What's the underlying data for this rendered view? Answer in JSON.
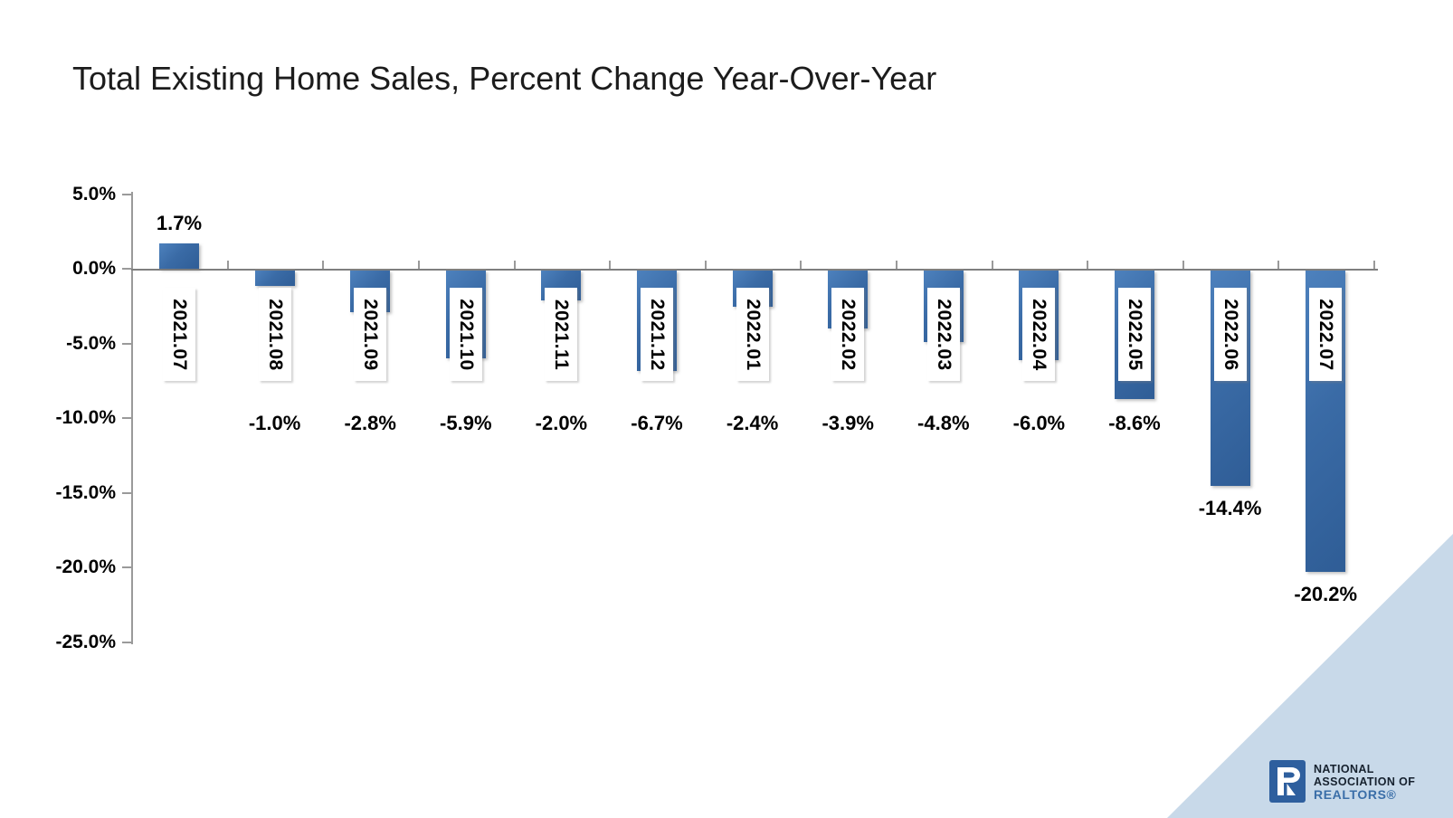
{
  "title": "Total Existing Home Sales, Percent Change Year-Over-Year",
  "chart_data": {
    "type": "bar",
    "categories": [
      "2021.07",
      "2021.08",
      "2021.09",
      "2021.10",
      "2021.11",
      "2021.12",
      "2022.01",
      "2022.02",
      "2022.03",
      "2022.04",
      "2022.05",
      "2022.06",
      "2022.07"
    ],
    "values": [
      1.7,
      -1.0,
      -2.8,
      -5.9,
      -2.0,
      -6.7,
      -2.4,
      -3.9,
      -4.8,
      -6.0,
      -8.6,
      -14.4,
      -20.2
    ],
    "value_labels": [
      "1.7%",
      "-1.0%",
      "-2.8%",
      "-5.9%",
      "-2.0%",
      "-6.7%",
      "-2.4%",
      "-3.9%",
      "-4.8%",
      "-6.0%",
      "-8.6%",
      "-14.4%",
      "-20.2%"
    ],
    "y_ticks": [
      {
        "value": 5,
        "label": "5.0%"
      },
      {
        "value": 0,
        "label": "0.0%"
      },
      {
        "value": -5,
        "label": "-5.0%"
      },
      {
        "value": -10,
        "label": "-10.0%"
      },
      {
        "value": -15,
        "label": "-15.0%"
      },
      {
        "value": -20,
        "label": "-20.0%"
      },
      {
        "value": -25,
        "label": "-25.0%"
      }
    ],
    "ylim": [
      -25,
      5
    ],
    "grid": false,
    "legend": false,
    "bar_color": "#3a6ba6"
  },
  "colors": {
    "bar": "#3a6ba6",
    "axis": "#7f7f7f",
    "corner_triangle": "#c8d9e9",
    "logo_square": "#2e5f9e",
    "logo_dark_text": "#16212e",
    "logo_blue_text": "#3a6ea8"
  },
  "logo": {
    "letter": "R",
    "line1": "NATIONAL",
    "line2": "ASSOCIATION OF",
    "line3": "REALTORS®"
  }
}
